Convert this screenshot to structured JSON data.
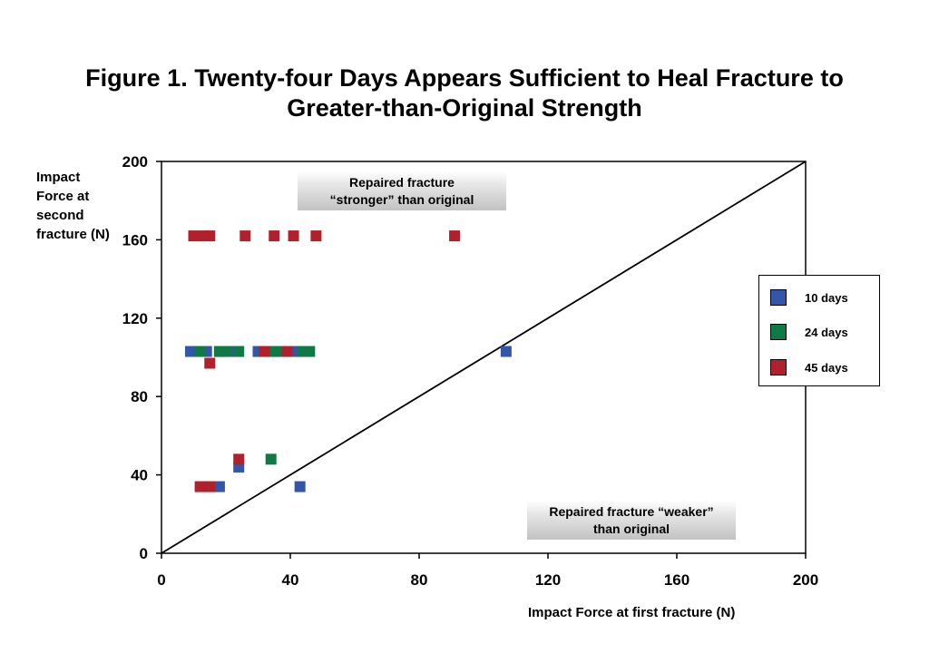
{
  "chart_data": {
    "type": "scatter",
    "title_line1": "Figure 1.  Twenty-four Days Appears Sufficient to Heal Fracture to",
    "title_line2": "Greater-than-Original Strength",
    "xlabel": "Impact Force at first fracture (N)",
    "ylabel": "Impact Force at second fracture (N)",
    "xlim": [
      0,
      200
    ],
    "ylim": [
      0,
      200
    ],
    "xticks": [
      "0",
      "40",
      "80",
      "120",
      "160",
      "200"
    ],
    "yticks": [
      "0",
      "40",
      "80",
      "120",
      "160",
      "200"
    ],
    "grid": false,
    "legend_position": "right",
    "reference_line": {
      "from": [
        0,
        0
      ],
      "to": [
        200,
        200
      ]
    },
    "annotations": {
      "upper_line1": "Repaired fracture",
      "upper_line2": "“stronger” than original",
      "lower_line1": "Repaired fracture “weaker”",
      "lower_line2": "than original"
    },
    "series": [
      {
        "name": "10 days",
        "color": "#3355aa",
        "points": [
          [
            9,
            103
          ],
          [
            14,
            103
          ],
          [
            18,
            103
          ],
          [
            23,
            103
          ],
          [
            30,
            103
          ],
          [
            35,
            103
          ],
          [
            42,
            103
          ],
          [
            107,
            103
          ],
          [
            24,
            44
          ],
          [
            18,
            34
          ],
          [
            43,
            34
          ]
        ]
      },
      {
        "name": "24 days",
        "color": "#0f7a45",
        "points": [
          [
            12,
            103
          ],
          [
            18,
            103
          ],
          [
            20,
            103
          ],
          [
            24,
            103
          ],
          [
            34,
            103
          ],
          [
            36,
            103
          ],
          [
            44,
            103
          ],
          [
            46,
            103
          ],
          [
            34,
            48
          ]
        ]
      },
      {
        "name": "45 days",
        "color": "#b0212b",
        "points": [
          [
            10,
            162
          ],
          [
            13,
            162
          ],
          [
            15,
            162
          ],
          [
            26,
            162
          ],
          [
            35,
            162
          ],
          [
            41,
            162
          ],
          [
            48,
            162
          ],
          [
            91,
            162
          ],
          [
            32,
            103
          ],
          [
            39,
            103
          ],
          [
            15,
            97
          ],
          [
            24,
            48
          ],
          [
            12,
            34
          ],
          [
            15,
            34
          ]
        ]
      }
    ]
  }
}
